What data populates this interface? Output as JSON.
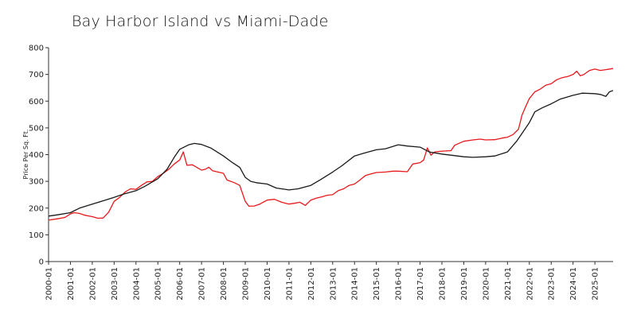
{
  "chart_data": {
    "type": "line",
    "title": "Bay Harbor Island vs Miami-Dade",
    "xlabel": "",
    "ylabel": "Price Per Sq. Ft.",
    "ylim": [
      0,
      800
    ],
    "xlim": [
      "2000-01",
      "2025-11"
    ],
    "yticks": [
      "0",
      "100",
      "200",
      "300",
      "400",
      "500",
      "600",
      "700",
      "800"
    ],
    "xticks": [
      "2000-01",
      "2001-01",
      "2002-01",
      "2003-01",
      "2004-01",
      "2005-01",
      "2006-01",
      "2007-01",
      "2008-01",
      "2009-01",
      "2010-01",
      "2011-01",
      "2012-01",
      "2013-01",
      "2014-01",
      "2015-01",
      "2016-01",
      "2017-01",
      "2018-01",
      "2019-01",
      "2020-01",
      "2021-01",
      "2022-01",
      "2023-01",
      "2024-01",
      "2025-01"
    ],
    "grid": false,
    "legend": "none",
    "series": [
      {
        "color": "#e8191c",
        "points": [
          [
            "2000-01",
            155
          ],
          [
            "2000-06",
            160
          ],
          [
            "2000-10",
            165
          ],
          [
            "2001-01",
            178
          ],
          [
            "2001-03",
            183
          ],
          [
            "2001-06",
            180
          ],
          [
            "2001-09",
            173
          ],
          [
            "2002-01",
            168
          ],
          [
            "2002-04",
            162
          ],
          [
            "2002-07",
            163
          ],
          [
            "2002-10",
            185
          ],
          [
            "2003-01",
            225
          ],
          [
            "2003-04",
            240
          ],
          [
            "2003-07",
            260
          ],
          [
            "2003-10",
            272
          ],
          [
            "2004-01",
            270
          ],
          [
            "2004-04",
            285
          ],
          [
            "2004-07",
            298
          ],
          [
            "2004-10",
            300
          ],
          [
            "2005-01",
            318
          ],
          [
            "2005-04",
            330
          ],
          [
            "2005-07",
            345
          ],
          [
            "2005-10",
            365
          ],
          [
            "2006-01",
            380
          ],
          [
            "2006-03",
            410
          ],
          [
            "2006-05",
            360
          ],
          [
            "2006-08",
            362
          ],
          [
            "2006-11",
            350
          ],
          [
            "2007-01",
            342
          ],
          [
            "2007-03",
            345
          ],
          [
            "2007-05",
            353
          ],
          [
            "2007-07",
            340
          ],
          [
            "2007-10",
            335
          ],
          [
            "2008-01",
            330
          ],
          [
            "2008-03",
            305
          ],
          [
            "2008-07",
            295
          ],
          [
            "2008-10",
            285
          ],
          [
            "2009-01",
            225
          ],
          [
            "2009-03",
            207
          ],
          [
            "2009-06",
            208
          ],
          [
            "2009-09",
            215
          ],
          [
            "2010-01",
            230
          ],
          [
            "2010-05",
            233
          ],
          [
            "2010-09",
            222
          ],
          [
            "2011-01",
            215
          ],
          [
            "2011-04",
            218
          ],
          [
            "2011-07",
            222
          ],
          [
            "2011-10",
            210
          ],
          [
            "2012-01",
            230
          ],
          [
            "2012-04",
            237
          ],
          [
            "2012-07",
            242
          ],
          [
            "2012-10",
            248
          ],
          [
            "2013-01",
            250
          ],
          [
            "2013-04",
            265
          ],
          [
            "2013-07",
            272
          ],
          [
            "2013-10",
            285
          ],
          [
            "2014-01",
            290
          ],
          [
            "2014-04",
            305
          ],
          [
            "2014-07",
            322
          ],
          [
            "2014-10",
            328
          ],
          [
            "2015-01",
            333
          ],
          [
            "2015-06",
            335
          ],
          [
            "2015-10",
            338
          ],
          [
            "2016-01",
            338
          ],
          [
            "2016-06",
            336
          ],
          [
            "2016-09",
            365
          ],
          [
            "2017-01",
            370
          ],
          [
            "2017-03",
            380
          ],
          [
            "2017-05",
            425
          ],
          [
            "2017-07",
            398
          ],
          [
            "2017-09",
            410
          ],
          [
            "2018-01",
            413
          ],
          [
            "2018-06",
            415
          ],
          [
            "2018-08",
            435
          ],
          [
            "2019-01",
            450
          ],
          [
            "2019-06",
            455
          ],
          [
            "2019-10",
            458
          ],
          [
            "2020-01",
            455
          ],
          [
            "2020-06",
            456
          ],
          [
            "2020-10",
            462
          ],
          [
            "2021-01",
            465
          ],
          [
            "2021-04",
            475
          ],
          [
            "2021-07",
            495
          ],
          [
            "2021-09",
            548
          ],
          [
            "2021-11",
            580
          ],
          [
            "2022-01",
            610
          ],
          [
            "2022-04",
            635
          ],
          [
            "2022-07",
            645
          ],
          [
            "2022-10",
            660
          ],
          [
            "2023-01",
            665
          ],
          [
            "2023-04",
            680
          ],
          [
            "2023-07",
            688
          ],
          [
            "2023-10",
            692
          ],
          [
            "2024-01",
            700
          ],
          [
            "2024-03",
            712
          ],
          [
            "2024-05",
            695
          ],
          [
            "2024-07",
            700
          ],
          [
            "2024-10",
            715
          ],
          [
            "2025-01",
            720
          ],
          [
            "2025-04",
            715
          ],
          [
            "2025-07",
            718
          ],
          [
            "2025-11",
            722
          ]
        ]
      },
      {
        "color": "#1a1a1a",
        "points": [
          [
            "2000-01",
            170
          ],
          [
            "2000-06",
            175
          ],
          [
            "2001-01",
            183
          ],
          [
            "2001-06",
            200
          ],
          [
            "2002-01",
            215
          ],
          [
            "2002-06",
            225
          ],
          [
            "2003-01",
            240
          ],
          [
            "2003-06",
            252
          ],
          [
            "2004-01",
            265
          ],
          [
            "2004-06",
            282
          ],
          [
            "2005-01",
            310
          ],
          [
            "2005-06",
            345
          ],
          [
            "2005-10",
            390
          ],
          [
            "2006-01",
            420
          ],
          [
            "2006-06",
            437
          ],
          [
            "2006-09",
            442
          ],
          [
            "2007-01",
            438
          ],
          [
            "2007-06",
            425
          ],
          [
            "2008-01",
            395
          ],
          [
            "2008-06",
            370
          ],
          [
            "2008-10",
            352
          ],
          [
            "2009-01",
            315
          ],
          [
            "2009-04",
            300
          ],
          [
            "2009-07",
            295
          ],
          [
            "2010-01",
            290
          ],
          [
            "2010-06",
            275
          ],
          [
            "2011-01",
            268
          ],
          [
            "2011-06",
            272
          ],
          [
            "2012-01",
            285
          ],
          [
            "2012-06",
            305
          ],
          [
            "2013-01",
            335
          ],
          [
            "2013-06",
            358
          ],
          [
            "2014-01",
            395
          ],
          [
            "2014-06",
            405
          ],
          [
            "2015-01",
            418
          ],
          [
            "2015-06",
            422
          ],
          [
            "2016-01",
            437
          ],
          [
            "2016-06",
            432
          ],
          [
            "2017-01",
            428
          ],
          [
            "2017-06",
            410
          ],
          [
            "2018-01",
            402
          ],
          [
            "2018-06",
            398
          ],
          [
            "2019-01",
            392
          ],
          [
            "2019-06",
            390
          ],
          [
            "2020-01",
            392
          ],
          [
            "2020-06",
            395
          ],
          [
            "2021-01",
            410
          ],
          [
            "2021-06",
            450
          ],
          [
            "2022-01",
            520
          ],
          [
            "2022-04",
            560
          ],
          [
            "2022-08",
            575
          ],
          [
            "2023-01",
            590
          ],
          [
            "2023-06",
            608
          ],
          [
            "2024-01",
            622
          ],
          [
            "2024-06",
            630
          ],
          [
            "2025-01",
            628
          ],
          [
            "2025-04",
            625
          ],
          [
            "2025-07",
            618
          ],
          [
            "2025-09",
            635
          ],
          [
            "2025-11",
            640
          ]
        ]
      }
    ]
  }
}
